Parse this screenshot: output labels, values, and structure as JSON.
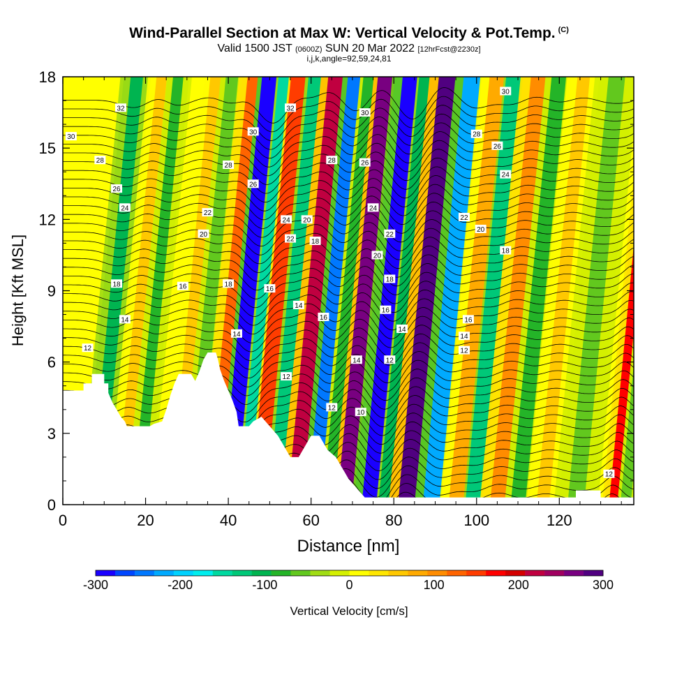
{
  "chart_data": {
    "type": "heatmap",
    "title": "Wind-Parallel Section at Max W: Vertical Velocity & Pot.Temp.",
    "title_units": "(C)",
    "subtitle": {
      "valid": "Valid 1500 JST",
      "zulu": "(0600Z)",
      "date": "SUN 20 Mar 2022",
      "forecast": "[12hrFcst@2230z]"
    },
    "grid_info": "i,j,k,angle=92,59,24,81",
    "xlabel": "Distance [nm]",
    "ylabel": "Height [Kft MSL]",
    "xlim": [
      0,
      138
    ],
    "ylim": [
      0,
      18
    ],
    "x_ticks": [
      0,
      20,
      40,
      60,
      80,
      100,
      120
    ],
    "y_ticks": [
      0,
      3,
      6,
      9,
      12,
      15,
      18
    ],
    "colorbar": {
      "label": "Vertical Velocity [cm/s]",
      "ticks": [
        -300,
        -200,
        -100,
        0,
        100,
        200,
        300
      ],
      "colors": [
        "#1a00ff",
        "#0046ff",
        "#0078ff",
        "#00aaff",
        "#00d2ff",
        "#00eeee",
        "#00d9a0",
        "#00c878",
        "#00b450",
        "#24b428",
        "#62c81e",
        "#a0dc14",
        "#d4f000",
        "#ffff00",
        "#ffe600",
        "#ffc800",
        "#ffaa00",
        "#ff8c00",
        "#ff6400",
        "#ff3c00",
        "#ff0000",
        "#d40000",
        "#c00040",
        "#a00060",
        "#780080",
        "#500080"
      ]
    },
    "velocity_bands": [
      {
        "x": 8,
        "w": 3,
        "value": -110
      },
      {
        "x": 14,
        "w": 2.5,
        "value": 60
      },
      {
        "x": 18,
        "w": 2.5,
        "value": -90
      },
      {
        "x": 27,
        "w": 2.5,
        "value": 60
      },
      {
        "x": 31,
        "w": 3,
        "value": -70
      },
      {
        "x": 36,
        "w": 2.5,
        "value": 140
      },
      {
        "x": 40,
        "w": 3.5,
        "value": -300
      },
      {
        "x": 43.5,
        "w": 2.5,
        "value": -150
      },
      {
        "x": 47,
        "w": 3.5,
        "value": 150
      },
      {
        "x": 51,
        "w": 3,
        "value": -130
      },
      {
        "x": 56,
        "w": 3.5,
        "value": 220
      },
      {
        "x": 60.5,
        "w": 3,
        "value": -250
      },
      {
        "x": 64,
        "w": 2.5,
        "value": -80
      },
      {
        "x": 68,
        "w": 3.5,
        "value": 270
      },
      {
        "x": 74,
        "w": 3.5,
        "value": -310
      },
      {
        "x": 77.5,
        "w": 2.5,
        "value": -110
      },
      {
        "x": 83,
        "w": 4,
        "value": 300
      },
      {
        "x": 89,
        "w": 4,
        "value": -230
      },
      {
        "x": 95,
        "w": 3.5,
        "value": 90
      },
      {
        "x": 99,
        "w": 3.5,
        "value": -130
      },
      {
        "x": 105,
        "w": 3.5,
        "value": 110
      },
      {
        "x": 110,
        "w": 3.5,
        "value": -80
      },
      {
        "x": 116,
        "w": 3,
        "value": 60
      },
      {
        "x": 124,
        "w": 4,
        "value": -50
      },
      {
        "x": 133,
        "w": 2,
        "value": 190
      },
      {
        "x": 136,
        "w": 2.5,
        "value": -60
      }
    ],
    "terrain": [
      [
        0,
        4.8
      ],
      [
        5,
        4.8
      ],
      [
        5,
        5.1
      ],
      [
        7,
        5.1
      ],
      [
        7,
        5.5
      ],
      [
        10,
        5.5
      ],
      [
        10,
        5.1
      ],
      [
        11,
        5.1
      ],
      [
        11,
        4.7
      ],
      [
        12,
        4.3
      ],
      [
        13,
        4.0
      ],
      [
        14,
        3.7
      ],
      [
        15,
        3.5
      ],
      [
        15.5,
        3.3
      ],
      [
        18,
        3.3
      ],
      [
        21,
        3.3
      ],
      [
        22,
        3.4
      ],
      [
        24,
        3.5
      ],
      [
        25,
        4.0
      ],
      [
        26,
        4.6
      ],
      [
        27,
        5.1
      ],
      [
        28,
        5.5
      ],
      [
        31,
        5.5
      ],
      [
        32,
        5.2
      ],
      [
        33,
        5.6
      ],
      [
        34,
        6.1
      ],
      [
        35,
        6.4
      ],
      [
        37,
        6.4
      ],
      [
        37.5,
        6.1
      ],
      [
        38,
        5.7
      ],
      [
        39,
        5.2
      ],
      [
        40,
        4.8
      ],
      [
        41,
        4.4
      ],
      [
        42,
        3.9
      ],
      [
        42.5,
        3.3
      ],
      [
        45,
        3.3
      ],
      [
        46,
        3.5
      ],
      [
        48,
        3.7
      ],
      [
        49,
        3.5
      ],
      [
        50,
        3.3
      ],
      [
        51,
        3.1
      ],
      [
        52,
        2.9
      ],
      [
        53,
        2.6
      ],
      [
        54,
        2.3
      ],
      [
        55,
        2.0
      ],
      [
        57,
        2.0
      ],
      [
        58,
        2.3
      ],
      [
        59,
        2.6
      ],
      [
        60,
        2.9
      ],
      [
        62,
        2.9
      ],
      [
        63,
        2.6
      ],
      [
        64,
        2.3
      ],
      [
        66,
        2.0
      ],
      [
        67,
        1.7
      ],
      [
        68,
        1.4
      ],
      [
        69,
        1.1
      ],
      [
        70,
        0.9
      ],
      [
        71,
        0.7
      ],
      [
        72,
        0.5
      ],
      [
        73,
        0.3
      ],
      [
        124,
        0.3
      ],
      [
        124,
        0.6
      ],
      [
        130,
        0.6
      ],
      [
        130,
        0.3
      ],
      [
        138,
        0.3
      ]
    ],
    "isentropes": {
      "min": 10,
      "max": 34,
      "interval": 0.5,
      "labeled": [
        10,
        12,
        14,
        16,
        18,
        20,
        22,
        24,
        26,
        28,
        30,
        32
      ]
    },
    "contour_labels": [
      {
        "x": 14,
        "y": 16.7,
        "text": "32"
      },
      {
        "x": 2,
        "y": 15.5,
        "text": "30"
      },
      {
        "x": 9,
        "y": 14.5,
        "text": "28"
      },
      {
        "x": 13,
        "y": 13.3,
        "text": "26"
      },
      {
        "x": 15,
        "y": 12.5,
        "text": "24"
      },
      {
        "x": 35,
        "y": 12.3,
        "text": "22"
      },
      {
        "x": 34,
        "y": 11.4,
        "text": "20"
      },
      {
        "x": 13,
        "y": 9.3,
        "text": "18"
      },
      {
        "x": 29,
        "y": 9.2,
        "text": "16"
      },
      {
        "x": 15,
        "y": 7.8,
        "text": "14"
      },
      {
        "x": 6,
        "y": 6.6,
        "text": "12"
      },
      {
        "x": 40,
        "y": 14.3,
        "text": "28"
      },
      {
        "x": 46,
        "y": 15.7,
        "text": "30"
      },
      {
        "x": 55,
        "y": 16.7,
        "text": "32"
      },
      {
        "x": 46,
        "y": 13.5,
        "text": "26"
      },
      {
        "x": 54,
        "y": 12.0,
        "text": "24"
      },
      {
        "x": 59,
        "y": 12.0,
        "text": "20"
      },
      {
        "x": 55,
        "y": 11.2,
        "text": "22"
      },
      {
        "x": 61,
        "y": 11.1,
        "text": "18"
      },
      {
        "x": 40,
        "y": 9.3,
        "text": "18"
      },
      {
        "x": 50,
        "y": 9.1,
        "text": "16"
      },
      {
        "x": 57,
        "y": 8.4,
        "text": "14"
      },
      {
        "x": 63,
        "y": 7.9,
        "text": "16"
      },
      {
        "x": 42,
        "y": 7.2,
        "text": "14"
      },
      {
        "x": 54,
        "y": 5.4,
        "text": "12"
      },
      {
        "x": 65,
        "y": 14.5,
        "text": "28"
      },
      {
        "x": 73,
        "y": 16.5,
        "text": "30"
      },
      {
        "x": 73,
        "y": 14.4,
        "text": "26"
      },
      {
        "x": 75,
        "y": 12.5,
        "text": "24"
      },
      {
        "x": 79,
        "y": 11.4,
        "text": "22"
      },
      {
        "x": 76,
        "y": 10.5,
        "text": "20"
      },
      {
        "x": 79,
        "y": 9.5,
        "text": "18"
      },
      {
        "x": 78,
        "y": 8.2,
        "text": "16"
      },
      {
        "x": 82,
        "y": 7.4,
        "text": "14"
      },
      {
        "x": 71,
        "y": 6.1,
        "text": "14"
      },
      {
        "x": 79,
        "y": 6.1,
        "text": "12"
      },
      {
        "x": 65,
        "y": 4.1,
        "text": "12"
      },
      {
        "x": 72,
        "y": 3.9,
        "text": "10"
      },
      {
        "x": 107,
        "y": 17.4,
        "text": "30"
      },
      {
        "x": 100,
        "y": 15.6,
        "text": "28"
      },
      {
        "x": 105,
        "y": 15.1,
        "text": "26"
      },
      {
        "x": 107,
        "y": 13.9,
        "text": "24"
      },
      {
        "x": 97,
        "y": 12.1,
        "text": "22"
      },
      {
        "x": 101,
        "y": 11.6,
        "text": "20"
      },
      {
        "x": 107,
        "y": 10.7,
        "text": "18"
      },
      {
        "x": 98,
        "y": 7.8,
        "text": "16"
      },
      {
        "x": 97,
        "y": 7.1,
        "text": "14"
      },
      {
        "x": 97,
        "y": 6.5,
        "text": "12"
      },
      {
        "x": 132,
        "y": 1.3,
        "text": "12"
      }
    ]
  }
}
